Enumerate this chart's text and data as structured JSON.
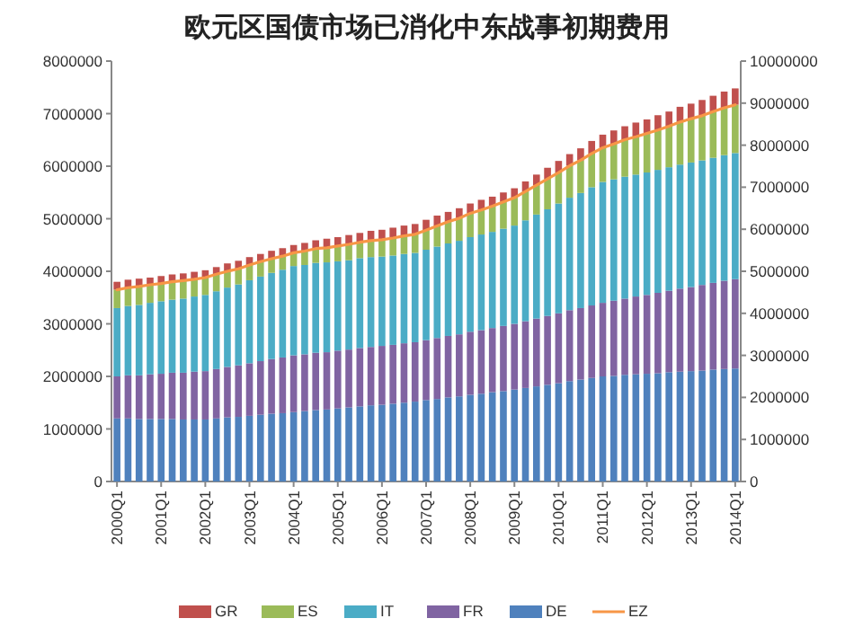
{
  "chart_data": {
    "type": "bar",
    "title": "欧元区国债市场已消化中东战事初期费用",
    "stacked": true,
    "legend": "bottom",
    "grid": false,
    "categories": [
      "2000Q1",
      null,
      null,
      null,
      "2001Q1",
      null,
      null,
      null,
      "2002Q1",
      null,
      null,
      null,
      "2003Q1",
      null,
      null,
      null,
      "2004Q1",
      null,
      null,
      null,
      "2005Q1",
      null,
      null,
      null,
      "2006Q1",
      null,
      null,
      null,
      "2007Q1",
      null,
      null,
      null,
      "2008Q1",
      null,
      null,
      null,
      "2009Q1",
      null,
      null,
      null,
      "2010Q1",
      null,
      null,
      null,
      "2011Q1",
      null,
      null,
      null,
      "2012Q1",
      null,
      null,
      null,
      "2013Q1",
      null,
      null,
      null,
      "2014Q1"
    ],
    "ylim": [
      0,
      8000000
    ],
    "yticks": [
      0,
      1000000,
      2000000,
      3000000,
      4000000,
      5000000,
      6000000,
      7000000,
      8000000
    ],
    "y2lim": [
      0,
      10000000
    ],
    "y2ticks": [
      0,
      1000000,
      2000000,
      3000000,
      4000000,
      5000000,
      6000000,
      7000000,
      8000000,
      9000000,
      10000000
    ],
    "series": [
      {
        "name": "DE",
        "color": "#4f81bd",
        "values": [
          1200000.0,
          1200000.0,
          1190000.0,
          1190000.0,
          1190000.0,
          1190000.0,
          1180000.0,
          1180000.0,
          1180000.0,
          1200000.0,
          1220000.0,
          1230000.0,
          1250000.0,
          1270000.0,
          1290000.0,
          1300000.0,
          1320000.0,
          1340000.0,
          1360000.0,
          1370000.0,
          1390000.0,
          1410000.0,
          1430000.0,
          1450000.0,
          1460000.0,
          1480000.0,
          1500000.0,
          1520000.0,
          1550000.0,
          1570000.0,
          1600000.0,
          1620000.0,
          1650000.0,
          1670000.0,
          1700000.0,
          1720000.0,
          1750000.0,
          1780000.0,
          1810000.0,
          1840000.0,
          1870000.0,
          1910000.0,
          1940000.0,
          1970000.0,
          2000000.0,
          2010000.0,
          2030000.0,
          2040000.0,
          2050000.0,
          2060000.0,
          2080000.0,
          2090000.0,
          2100000.0,
          2110000.0,
          2130000.0,
          2140000.0,
          2150000.0
        ]
      },
      {
        "name": "FR",
        "color": "#8064a2",
        "values": [
          800000.0,
          820000.0,
          830000.0,
          850000.0,
          860000.0,
          880000.0,
          890000.0,
          910000.0,
          920000.0,
          940000.0,
          960000.0,
          980000.0,
          1000000.0,
          1020000.0,
          1040000.0,
          1060000.0,
          1080000.0,
          1080000.0,
          1090000.0,
          1090000.0,
          1100000.0,
          1100000.0,
          1110000.0,
          1110000.0,
          1120000.0,
          1120000.0,
          1130000.0,
          1130000.0,
          1140000.0,
          1160000.0,
          1170000.0,
          1180000.0,
          1200000.0,
          1210000.0,
          1220000.0,
          1240000.0,
          1250000.0,
          1270000.0,
          1290000.0,
          1310000.0,
          1330000.0,
          1350000.0,
          1360000.0,
          1380000.0,
          1400000.0,
          1430000.0,
          1450000.0,
          1480000.0,
          1500000.0,
          1530000.0,
          1550000.0,
          1580000.0,
          1600000.0,
          1630000.0,
          1650000.0,
          1680000.0,
          1700000.0
        ]
      },
      {
        "name": "IT",
        "color": "#4bacc6",
        "values": [
          1300000.0,
          1320000.0,
          1340000.0,
          1360000.0,
          1380000.0,
          1390000.0,
          1410000.0,
          1430000.0,
          1450000.0,
          1480000.0,
          1510000.0,
          1540000.0,
          1580000.0,
          1610000.0,
          1640000.0,
          1670000.0,
          1700000.0,
          1700000.0,
          1710000.0,
          1710000.0,
          1700000.0,
          1700000.0,
          1710000.0,
          1710000.0,
          1700000.0,
          1700000.0,
          1700000.0,
          1700000.0,
          1720000.0,
          1740000.0,
          1760000.0,
          1780000.0,
          1800000.0,
          1820000.0,
          1830000.0,
          1850000.0,
          1870000.0,
          1920000.0,
          1980000.0,
          2030000.0,
          2090000.0,
          2140000.0,
          2190000.0,
          2250000.0,
          2300000.0,
          2310000.0,
          2320000.0,
          2320000.0,
          2330000.0,
          2340000.0,
          2350000.0,
          2360000.0,
          2370000.0,
          2370000.0,
          2380000.0,
          2390000.0,
          2400000.0
        ]
      },
      {
        "name": "ES",
        "color": "#9bbb59",
        "values": [
          350000.0,
          350000.0,
          350000.0,
          340000.0,
          340000.0,
          340000.0,
          340000.0,
          330000.0,
          330000.0,
          320000.0,
          310000.0,
          300000.0,
          290000.0,
          280000.0,
          270000.0,
          260000.0,
          250000.0,
          260000.0,
          270000.0,
          280000.0,
          290000.0,
          300000.0,
          300000.0,
          310000.0,
          320000.0,
          330000.0,
          340000.0,
          350000.0,
          370000.0,
          390000.0,
          410000.0,
          430000.0,
          450000.0,
          470000.0,
          490000.0,
          510000.0,
          530000.0,
          550000.0,
          560000.0,
          580000.0,
          590000.0,
          610000.0,
          620000.0,
          640000.0,
          650000.0,
          670000.0,
          700000.0,
          720000.0,
          740000.0,
          760000.0,
          780000.0,
          810000.0,
          830000.0,
          850000.0,
          880000.0,
          900000.0,
          920000.0
        ]
      },
      {
        "name": "GR",
        "color": "#c0504d",
        "values": [
          150000.0,
          150000.0,
          150000.0,
          140000.0,
          140000.0,
          140000.0,
          140000.0,
          140000.0,
          140000.0,
          140000.0,
          150000.0,
          150000.0,
          150000.0,
          150000.0,
          150000.0,
          150000.0,
          150000.0,
          160000.0,
          160000.0,
          170000.0,
          170000.0,
          180000.0,
          180000.0,
          190000.0,
          190000.0,
          200000.0,
          200000.0,
          200000.0,
          200000.0,
          200000.0,
          190000.0,
          190000.0,
          190000.0,
          190000.0,
          180000.0,
          180000.0,
          180000.0,
          190000.0,
          200000.0,
          210000.0,
          220000.0,
          220000.0,
          230000.0,
          240000.0,
          250000.0,
          260000.0,
          260000.0,
          270000.0,
          270000.0,
          280000.0,
          280000.0,
          290000.0,
          290000.0,
          300000.0,
          300000.0,
          310000.0,
          310000.0
        ]
      },
      {
        "name": "EZ",
        "type": "line",
        "axis": "y2",
        "color": "#f79646",
        "values": [
          4560000.0,
          4610000.0,
          4640000.0,
          4680000.0,
          4710000.0,
          4750000.0,
          4780000.0,
          4810000.0,
          4850000.0,
          4930000.0,
          5000000.0,
          5060000.0,
          5150000.0,
          5230000.0,
          5300000.0,
          5360000.0,
          5440000.0,
          5480000.0,
          5540000.0,
          5560000.0,
          5600000.0,
          5640000.0,
          5690000.0,
          5730000.0,
          5750000.0,
          5790000.0,
          5840000.0,
          5880000.0,
          5980000.0,
          6080000.0,
          6180000.0,
          6260000.0,
          6380000.0,
          6460000.0,
          6550000.0,
          6650000.0,
          6750000.0,
          6900000.0,
          7050000.0,
          7200000.0,
          7350000.0,
          7510000.0,
          7640000.0,
          7800000.0,
          7940000.0,
          8030000.0,
          8130000.0,
          8200000.0,
          8280000.0,
          8360000.0,
          8450000.0,
          8550000.0,
          8630000.0,
          8700000.0,
          8800000.0,
          8890000.0,
          8960000.0
        ]
      }
    ]
  }
}
